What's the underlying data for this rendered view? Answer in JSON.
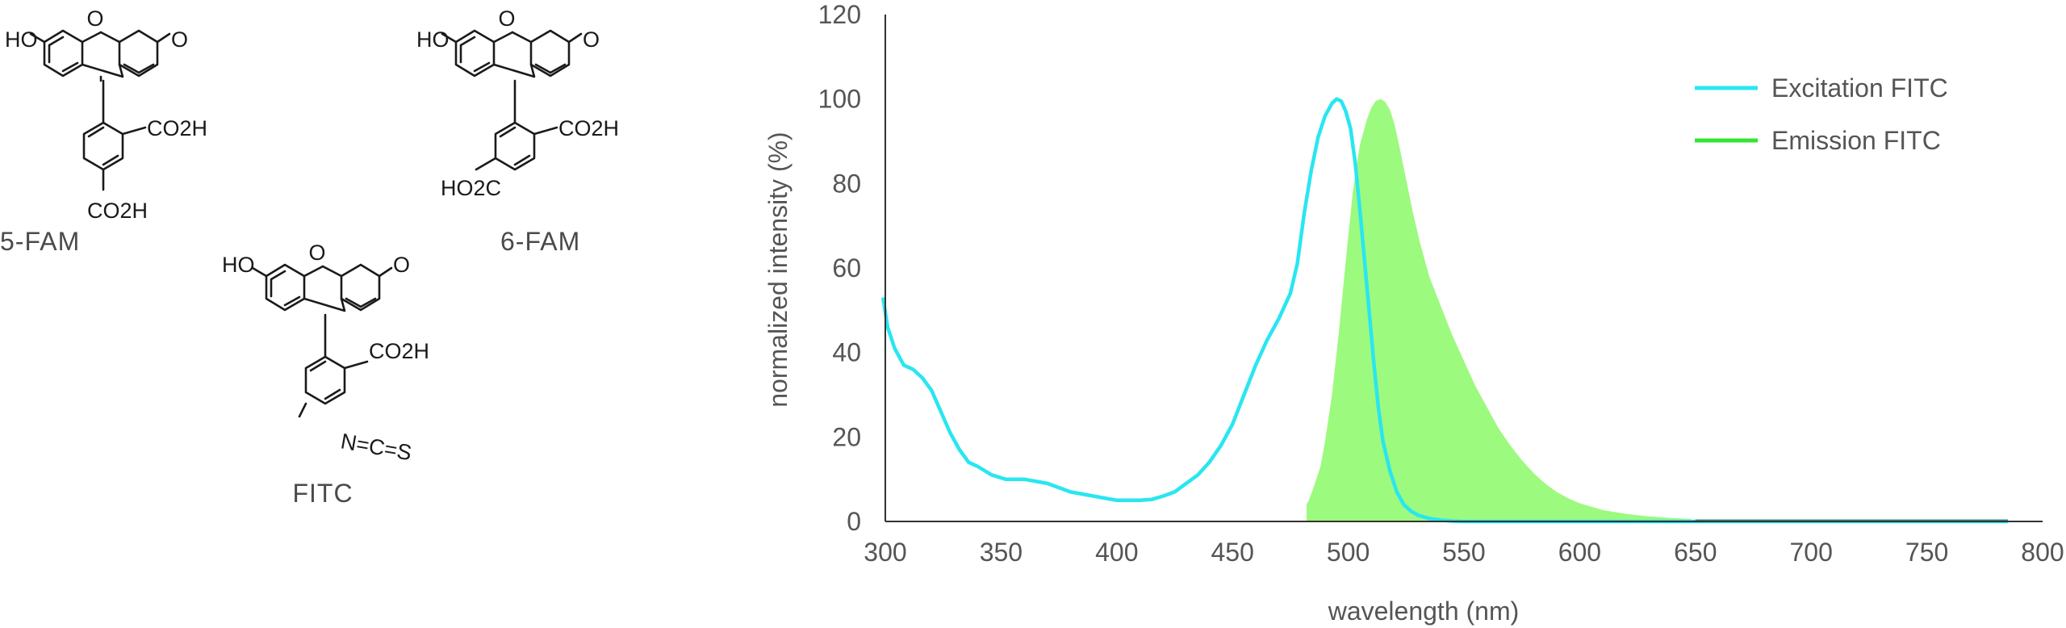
{
  "structures": [
    {
      "name": "5-FAM",
      "top_left": "HO",
      "top_right": "O",
      "ring_o": "O",
      "sub1": "CO2H",
      "sub2": "CO2H"
    },
    {
      "name": "6-FAM",
      "top_left": "HO",
      "top_right": "O",
      "ring_o": "O",
      "sub1": "CO2H",
      "sub2": "HO2C"
    },
    {
      "name": "FITC",
      "top_left": "HO",
      "top_right": "O",
      "ring_o": "O",
      "sub1": "CO2H",
      "sub2": "N=C=S"
    }
  ],
  "chart_data": {
    "type": "line",
    "title": "",
    "xlabel": "wavelength (nm)",
    "ylabel": "normalized intensity (%)",
    "xlim": [
      300,
      800
    ],
    "ylim": [
      0,
      120
    ],
    "x_ticks": [
      300,
      350,
      400,
      450,
      500,
      550,
      600,
      650,
      700,
      750,
      800
    ],
    "y_ticks": [
      0,
      20,
      40,
      60,
      80,
      100,
      120
    ],
    "grid": false,
    "legend_position": "top-right",
    "series": [
      {
        "name": "Excitation FITC",
        "style": "line",
        "color": "#29e6f0",
        "x": [
          299,
          301,
          304,
          308,
          312,
          316,
          320,
          324,
          328,
          332,
          336,
          340,
          346,
          352,
          360,
          370,
          380,
          390,
          400,
          410,
          415,
          420,
          425,
          430,
          435,
          440,
          445,
          450,
          455,
          460,
          465,
          470,
          475,
          478,
          481,
          484,
          487,
          490,
          493,
          495,
          497,
          499,
          501,
          503,
          505,
          507,
          509,
          511,
          513,
          515,
          518,
          521,
          524,
          527,
          530,
          535,
          540,
          545,
          550,
          560,
          600,
          650,
          700,
          750,
          785
        ],
        "y": [
          53,
          46,
          41,
          37,
          36,
          34,
          31,
          26,
          21,
          17,
          14,
          13,
          11,
          10,
          10,
          9,
          7,
          6,
          5,
          5,
          5.2,
          6,
          7,
          9,
          11,
          14,
          18,
          23,
          30,
          37,
          43,
          48,
          54,
          61,
          73,
          83,
          91,
          96,
          99,
          100,
          99.5,
          97,
          93,
          85,
          74,
          62,
          50,
          38,
          27,
          19,
          12,
          7,
          4,
          2.5,
          1.5,
          0.7,
          0.3,
          0.1,
          0,
          0,
          0,
          0,
          0,
          0,
          0
        ]
      },
      {
        "name": "Emission FITC",
        "style": "area",
        "color": "#33e633",
        "fill": "#9cfa7e",
        "x": [
          482,
          483,
          485,
          488,
          490,
          493,
          496,
          499,
          502,
          505,
          508,
          510,
          512,
          514,
          516,
          518,
          520,
          522,
          525,
          528,
          531,
          535,
          540,
          545,
          550,
          555,
          560,
          565,
          570,
          575,
          580,
          585,
          590,
          595,
          600,
          610,
          620,
          630,
          640,
          648
        ],
        "y": [
          4,
          5,
          8,
          13,
          19,
          30,
          45,
          62,
          78,
          89,
          95,
          98,
          99.6,
          100,
          99.3,
          97.5,
          94,
          89,
          81,
          73,
          66,
          58,
          51,
          44,
          38,
          32,
          27,
          22,
          18,
          14.5,
          11.5,
          9,
          7,
          5.5,
          4.3,
          2.7,
          1.8,
          1.2,
          0.8,
          0.6
        ]
      }
    ]
  }
}
